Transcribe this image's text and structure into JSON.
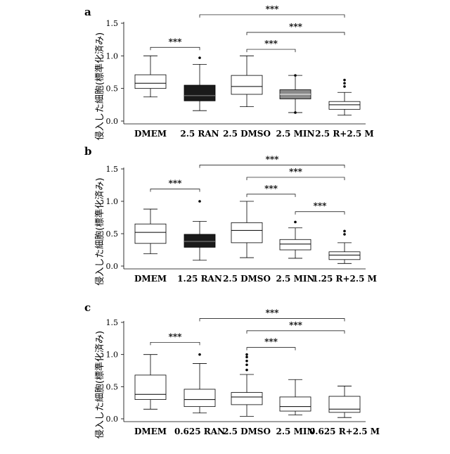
{
  "chart_data": [
    {
      "panel": "a",
      "type": "box",
      "ylabel": "侵入した細胞(標準化済み)",
      "ylim": [
        0,
        1.5
      ],
      "yticks": [
        "0.0",
        "0.5",
        "1.0",
        "1.5"
      ],
      "categories": [
        "DMEM",
        "2.5 RAN",
        "2.5 DMSO",
        "2.5 MIN",
        "2.5 R+2.5 M"
      ],
      "boxes": [
        {
          "whisker_low": 0.37,
          "q1": 0.5,
          "median": 0.58,
          "q3": 0.71,
          "whisker_high": 1.0,
          "fill": "#ffffff",
          "outliers": []
        },
        {
          "whisker_low": 0.16,
          "q1": 0.31,
          "median": 0.39,
          "q3": 0.55,
          "whisker_high": 0.87,
          "fill": "#1a1a1a",
          "outliers": [
            0.97
          ]
        },
        {
          "whisker_low": 0.22,
          "q1": 0.41,
          "median": 0.53,
          "q3": 0.7,
          "whisker_high": 1.0,
          "fill": "#ffffff",
          "outliers": []
        },
        {
          "whisker_low": 0.13,
          "q1": 0.34,
          "median": 0.41,
          "q3": 0.48,
          "whisker_high": 0.7,
          "fill": "#8a8a8a",
          "outliers": [
            0.7,
            0.13
          ]
        },
        {
          "whisker_low": 0.09,
          "q1": 0.18,
          "median": 0.25,
          "q3": 0.3,
          "whisker_high": 0.44,
          "fill": "#ffffff",
          "outliers": [
            0.53,
            0.58,
            0.63
          ]
        }
      ],
      "significance": [
        {
          "from": 0,
          "to": 1,
          "label": "***",
          "y": 1.13
        },
        {
          "from": 1,
          "to": 4,
          "label": "***",
          "y": 1.63
        },
        {
          "from": 2,
          "to": 4,
          "label": "***",
          "y": 1.36
        },
        {
          "from": 2,
          "to": 3,
          "label": "***",
          "y": 1.1
        }
      ]
    },
    {
      "panel": "b",
      "type": "box",
      "ylabel": "侵入した細胞(標準化済み)",
      "ylim": [
        0,
        1.5
      ],
      "yticks": [
        "0.0",
        "0.5",
        "1.0",
        "1.5"
      ],
      "categories": [
        "DMEM",
        "1.25 RAN",
        "2.5 DMSO",
        "2.5 MIN",
        "1.25 R+2.5 M"
      ],
      "boxes": [
        {
          "whisker_low": 0.19,
          "q1": 0.35,
          "median": 0.52,
          "q3": 0.65,
          "whisker_high": 0.88,
          "fill": "#ffffff",
          "outliers": []
        },
        {
          "whisker_low": 0.09,
          "q1": 0.29,
          "median": 0.38,
          "q3": 0.49,
          "whisker_high": 0.69,
          "fill": "#1a1a1a",
          "outliers": [
            1.0
          ]
        },
        {
          "whisker_low": 0.13,
          "q1": 0.36,
          "median": 0.55,
          "q3": 0.67,
          "whisker_high": 1.0,
          "fill": "#ffffff",
          "outliers": []
        },
        {
          "whisker_low": 0.12,
          "q1": 0.25,
          "median": 0.34,
          "q3": 0.41,
          "whisker_high": 0.59,
          "fill": "#ffffff",
          "outliers": [
            0.68
          ]
        },
        {
          "whisker_low": 0.04,
          "q1": 0.1,
          "median": 0.17,
          "q3": 0.22,
          "whisker_high": 0.36,
          "fill": "#ffffff",
          "outliers": [
            0.49,
            0.54
          ]
        }
      ],
      "significance": [
        {
          "from": 0,
          "to": 1,
          "label": "***",
          "y": 1.19
        },
        {
          "from": 1,
          "to": 4,
          "label": "***",
          "y": 1.56
        },
        {
          "from": 2,
          "to": 4,
          "label": "***",
          "y": 1.37
        },
        {
          "from": 2,
          "to": 3,
          "label": "***",
          "y": 1.11
        },
        {
          "from": 3,
          "to": 4,
          "label": "***",
          "y": 0.84
        }
      ]
    },
    {
      "panel": "c",
      "type": "box",
      "ylabel": "侵入した細胞(標準化済み)",
      "ylim": [
        0,
        1.5
      ],
      "yticks": [
        "0.0",
        "0.5",
        "1.0",
        "1.5"
      ],
      "categories": [
        "DMEM",
        "0.625 RAN",
        "2.5 DMSO",
        "2.5 MIN",
        "0.625 R+2.5 M"
      ],
      "boxes": [
        {
          "whisker_low": 0.15,
          "q1": 0.3,
          "median": 0.38,
          "q3": 0.68,
          "whisker_high": 1.0,
          "fill": "#ffffff",
          "outliers": []
        },
        {
          "whisker_low": 0.09,
          "q1": 0.19,
          "median": 0.3,
          "q3": 0.46,
          "whisker_high": 0.86,
          "fill": "#ffffff",
          "outliers": [
            1.0
          ]
        },
        {
          "whisker_low": 0.04,
          "q1": 0.22,
          "median": 0.34,
          "q3": 0.41,
          "whisker_high": 0.69,
          "fill": "#ffffff",
          "outliers": [
            0.76,
            0.84,
            0.9,
            0.96,
            1.0
          ]
        },
        {
          "whisker_low": 0.06,
          "q1": 0.12,
          "median": 0.19,
          "q3": 0.34,
          "whisker_high": 0.61,
          "fill": "#ffffff",
          "outliers": []
        },
        {
          "whisker_low": 0.02,
          "q1": 0.1,
          "median": 0.15,
          "q3": 0.35,
          "whisker_high": 0.51,
          "fill": "#ffffff",
          "outliers": []
        }
      ],
      "significance": [
        {
          "from": 0,
          "to": 1,
          "label": "***",
          "y": 1.19
        },
        {
          "from": 1,
          "to": 4,
          "label": "***",
          "y": 1.56
        },
        {
          "from": 2,
          "to": 4,
          "label": "***",
          "y": 1.37
        },
        {
          "from": 2,
          "to": 3,
          "label": "***",
          "y": 1.11
        }
      ]
    }
  ]
}
